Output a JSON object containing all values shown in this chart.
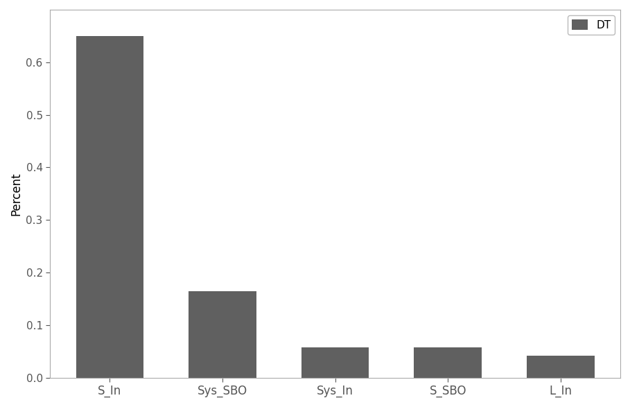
{
  "categories": [
    "S_In",
    "Sys_SBO",
    "Sys_In",
    "S_SBO",
    "L_In"
  ],
  "values": [
    0.65,
    0.165,
    0.057,
    0.057,
    0.042
  ],
  "bar_color": "#606060",
  "ylabel": "Percent",
  "ylim": [
    0.0,
    0.7
  ],
  "yticks": [
    0.0,
    0.1,
    0.2,
    0.3,
    0.4,
    0.5,
    0.6
  ],
  "legend_label": "DT",
  "legend_loc": "upper right",
  "background_color": "#ffffff",
  "axes_facecolor": "#ffffff",
  "spine_color": "#aaaaaa",
  "tick_color": "#555555"
}
